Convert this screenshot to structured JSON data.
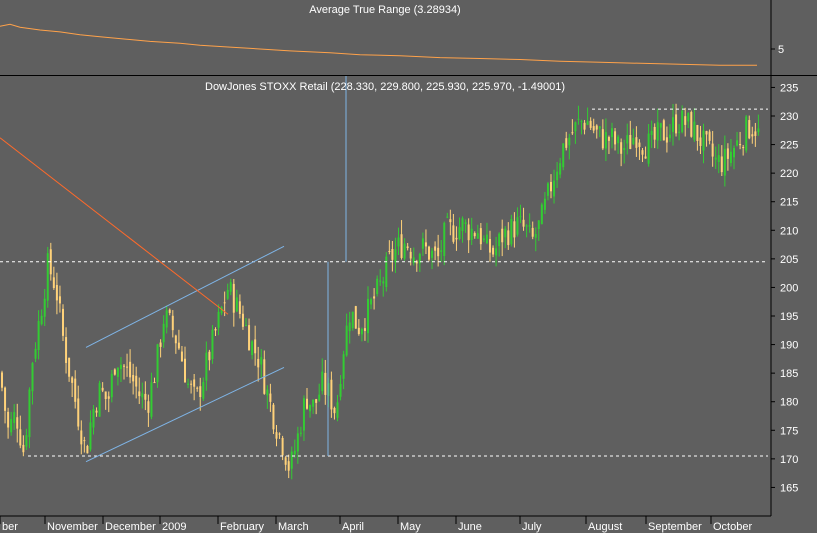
{
  "atr_panel": {
    "title": "Average True Range (3.28934)",
    "tick_label": "5",
    "color": "#ffa24a"
  },
  "price_panel": {
    "title": "DowJones STOXX Retail (228.330, 229.800, 225.930, 225.970, -1.49001)"
  },
  "colors": {
    "background": "#5f5f5f",
    "up_candle": "#33cc33",
    "down_candle": "#ffd27a",
    "channel": "#7fb4e6",
    "trendline": "#ff6a2a",
    "dashed": "#ffffff"
  },
  "chart_data": [
    {
      "type": "line",
      "title": "Average True Range (3.28934)",
      "yticks": [
        "5"
      ],
      "last_value": 3.28934,
      "trend": "declining from about 7.5 to about 3.3",
      "x_range": [
        "Oct 2008",
        "Oct 2009"
      ],
      "series": [
        {
          "name": "Average True Range",
          "x_index": [
            0,
            10,
            20,
            40,
            60,
            80,
            100,
            120,
            150,
            180,
            200,
            230,
            260,
            290,
            330,
            360,
            400,
            440,
            480,
            520,
            560,
            600,
            640,
            680,
            720,
            757
          ],
          "values": [
            7.4,
            7.6,
            7.3,
            7.0,
            6.8,
            6.5,
            6.3,
            6.1,
            5.8,
            5.6,
            5.4,
            5.2,
            5.0,
            4.8,
            4.6,
            4.4,
            4.3,
            4.1,
            4.0,
            3.9,
            3.7,
            3.6,
            3.5,
            3.4,
            3.3,
            3.3
          ]
        }
      ]
    },
    {
      "type": "candlestick",
      "title": "DowJones STOXX Retail (228.330, 229.800, 225.930, 225.970, -1.49001)",
      "last_bar": {
        "open": 228.33,
        "high": 229.8,
        "low": 225.93,
        "close": 225.97,
        "change": -1.49001
      },
      "ylim": [
        160,
        237
      ],
      "yticks": [
        165,
        170,
        175,
        180,
        185,
        190,
        195,
        200,
        205,
        210,
        215,
        220,
        225,
        230,
        235
      ],
      "x_months": [
        "ber",
        "November",
        "December",
        "2009",
        "February",
        "March",
        "April",
        "May",
        "June",
        "July",
        "August",
        "September",
        "October"
      ],
      "x_month_index": [
        0,
        45,
        103,
        160,
        218,
        276,
        340,
        398,
        456,
        520,
        586,
        646,
        711
      ],
      "x_range": [
        0,
        765
      ],
      "close_path": [
        [
          0,
          185
        ],
        [
          8,
          175
        ],
        [
          16,
          178
        ],
        [
          24,
          171
        ],
        [
          32,
          187
        ],
        [
          40,
          195
        ],
        [
          48,
          204
        ],
        [
          56,
          200
        ],
        [
          64,
          190
        ],
        [
          72,
          183
        ],
        [
          80,
          176
        ],
        [
          86,
          171
        ],
        [
          92,
          178
        ],
        [
          100,
          182
        ],
        [
          108,
          180
        ],
        [
          116,
          188
        ],
        [
          124,
          186
        ],
        [
          132,
          184
        ],
        [
          140,
          181
        ],
        [
          148,
          180
        ],
        [
          156,
          186
        ],
        [
          164,
          195
        ],
        [
          172,
          193
        ],
        [
          180,
          189
        ],
        [
          188,
          183
        ],
        [
          196,
          180
        ],
        [
          204,
          185
        ],
        [
          212,
          190
        ],
        [
          220,
          195
        ],
        [
          228,
          200
        ],
        [
          236,
          197
        ],
        [
          244,
          194
        ],
        [
          252,
          190
        ],
        [
          260,
          187
        ],
        [
          268,
          181
        ],
        [
          276,
          176
        ],
        [
          284,
          172
        ],
        [
          290,
          168
        ],
        [
          298,
          174
        ],
        [
          306,
          181
        ],
        [
          314,
          179
        ],
        [
          322,
          183
        ],
        [
          330,
          181
        ],
        [
          336,
          178
        ],
        [
          342,
          188
        ],
        [
          350,
          196
        ],
        [
          358,
          193
        ],
        [
          366,
          195
        ],
        [
          374,
          198
        ],
        [
          382,
          201
        ],
        [
          390,
          205
        ],
        [
          398,
          207
        ],
        [
          406,
          208
        ],
        [
          414,
          206
        ],
        [
          422,
          207
        ],
        [
          430,
          206
        ],
        [
          438,
          205
        ],
        [
          446,
          210
        ],
        [
          454,
          210
        ],
        [
          462,
          211
        ],
        [
          470,
          210
        ],
        [
          478,
          210
        ],
        [
          486,
          207
        ],
        [
          494,
          206
        ],
        [
          502,
          209
        ],
        [
          510,
          210
        ],
        [
          518,
          211
        ],
        [
          526,
          210
        ],
        [
          532,
          208
        ],
        [
          540,
          211
        ],
        [
          548,
          216
        ],
        [
          556,
          221
        ],
        [
          564,
          225
        ],
        [
          572,
          227
        ],
        [
          580,
          229
        ],
        [
          588,
          229
        ],
        [
          596,
          227
        ],
        [
          604,
          226
        ],
        [
          612,
          226
        ],
        [
          620,
          224
        ],
        [
          628,
          225
        ],
        [
          636,
          227
        ],
        [
          644,
          225
        ],
        [
          652,
          225
        ],
        [
          660,
          227
        ],
        [
          668,
          227
        ],
        [
          676,
          229
        ],
        [
          684,
          229
        ],
        [
          692,
          228
        ],
        [
          700,
          226
        ],
        [
          708,
          224
        ],
        [
          716,
          222
        ],
        [
          724,
          222
        ],
        [
          732,
          224
        ],
        [
          740,
          226
        ],
        [
          748,
          228
        ],
        [
          756,
          228
        ],
        [
          760,
          226
        ]
      ],
      "dashed_levels": [
        {
          "y": 170.5,
          "x_start": 28,
          "x_end": 768
        },
        {
          "y": 204.5,
          "x_start": 0,
          "x_end": 768
        },
        {
          "y": 231.2,
          "x_start": 592,
          "x_end": 768
        }
      ],
      "vertical_markers": [
        {
          "x": 328,
          "y_from": 170.5,
          "y_to": 204.5
        },
        {
          "x": 346,
          "y_from": 204.5,
          "y_to": 237
        }
      ],
      "channel_lines": [
        {
          "from": [
            86,
            189.5
          ],
          "to": [
            284,
            207.2
          ]
        },
        {
          "from": [
            86,
            169.5
          ],
          "to": [
            284,
            186.0
          ]
        }
      ],
      "trendline": {
        "from": [
          0,
          226.2
        ],
        "to": [
          228,
          195.3
        ]
      }
    }
  ]
}
